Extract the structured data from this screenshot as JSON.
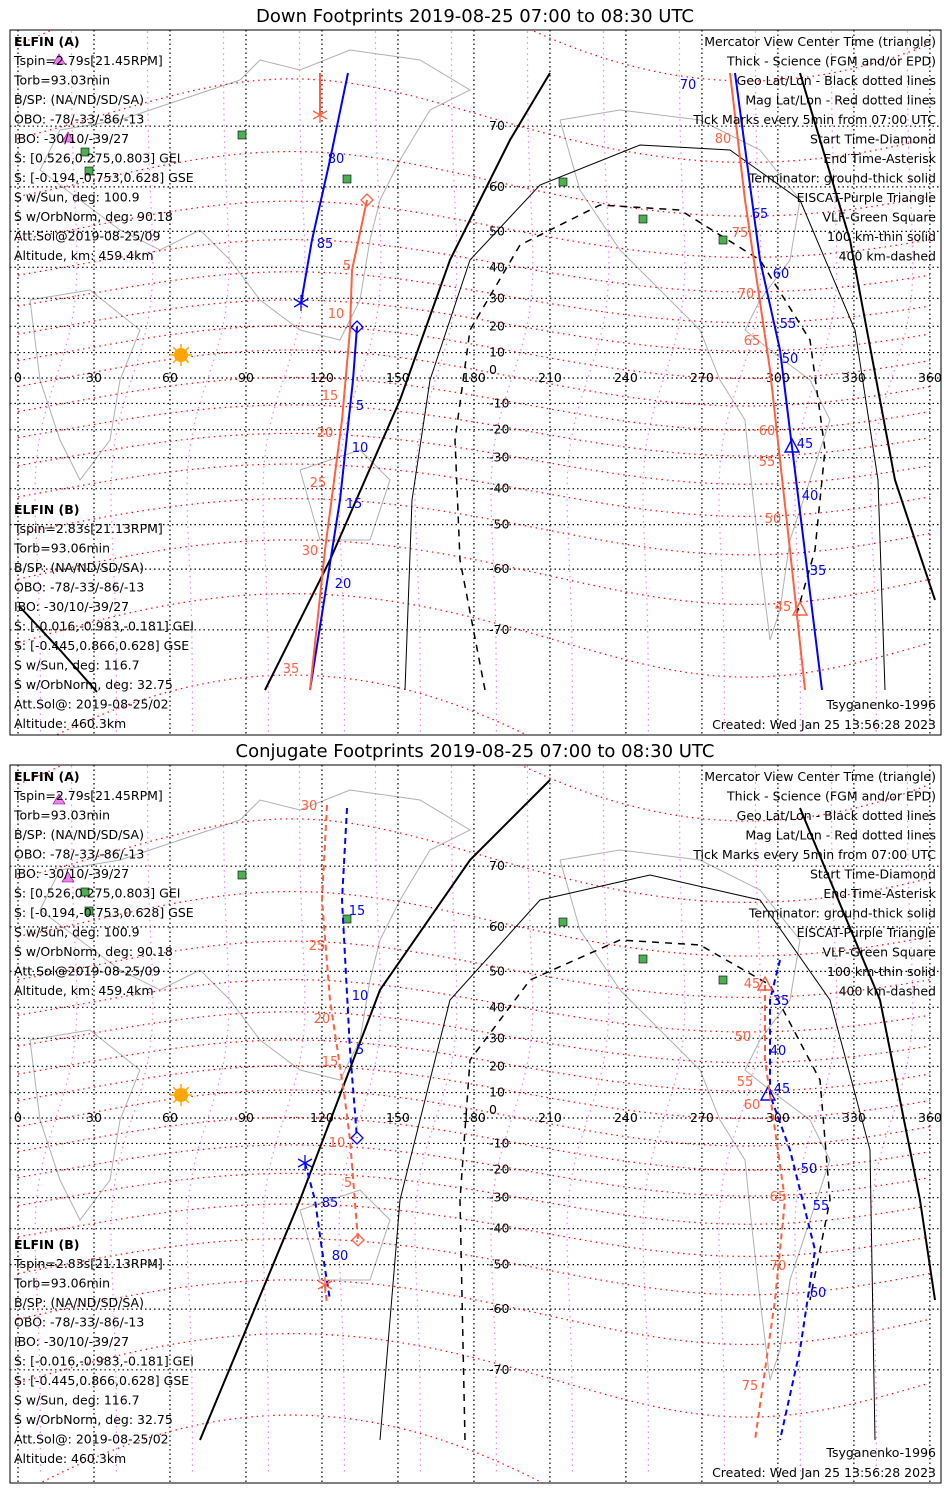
{
  "panels": [
    {
      "title": "Down Footprints 2019-08-25 07:00 to 08:30 UTC",
      "elfin_a": {
        "label": "ELFIN (A)",
        "lines": [
          "Tspin=2.79s[21.45RPM]",
          "Torb=93.03min",
          "B/SP: (NA/ND/SD/SA)",
          "OBO: -78/-33/-86/-13",
          "IBO: -30/10/-39/27",
          "S: [0.526,0.275,0.803] GEI",
          "S: [-0.194,-0.753,0.628] GSE",
          "S w/Sun, deg: 100.9",
          "S w/OrbNorm, deg: 90.18",
          "Att.Sol@2019-08-25/09",
          "Altitude, km: 459.4km"
        ]
      },
      "elfin_b": {
        "label": "ELFIN (B)",
        "lines": [
          "Tspin=2.83s[21.13RPM]",
          "Torb=93.06min",
          "B/SP: (NA/ND/SD/SA)",
          "OBO: -78/-33/-86/-13",
          "IBO: -30/10/-39/27",
          "S: [-0.016,-0.983,-0.181] GEI",
          "S: [-0.445,0.866,0.628] GSE",
          "S w/Sun, deg: 116.7",
          "S w/OrbNorm, deg: 32.75",
          "Att.Sol@: 2019-08-25/02",
          "Altitude: 460.3km"
        ]
      },
      "legend": [
        {
          "text": "Mercator View Center Time (triangle)",
          "color": "#000000"
        },
        {
          "text": "Thick - Science (FGM and/or EPD)",
          "color": "#000000"
        },
        {
          "text": "Geo Lat/Lon - Black dotted lines",
          "color": "#000000"
        },
        {
          "text": "Mag Lat/Lon - Red dotted lines",
          "color": "#ff0000"
        },
        {
          "text": "Tick Marks every 5min from 07:00 UTC",
          "color": "#000000"
        },
        {
          "text": "Start Time-Diamond",
          "color": "#000000"
        },
        {
          "text": "End Time-Asterisk",
          "color": "#000000"
        },
        {
          "text": "Terminator: ground-thick solid",
          "color": "#000000"
        },
        {
          "text": "EISCAT-Purple Triangle",
          "color": "#ee82ee"
        },
        {
          "text": "VLF-Green Square",
          "color": "#4caf50"
        },
        {
          "text": "100 km-thin solid",
          "color": "#000000"
        },
        {
          "text": "400 km-dashed",
          "color": "#000000"
        }
      ],
      "model": "Tsyganenko-1996",
      "created": "Created: Wed Jan 25 13:56:28 2023",
      "a_ticks": [
        "80",
        "85",
        "5",
        "10",
        "15",
        "20",
        "70",
        "65",
        "60",
        "55",
        "50",
        "45",
        "40",
        "35"
      ],
      "b_ticks": [
        "5",
        "10",
        "15",
        "20",
        "25",
        "30",
        "35",
        "80",
        "75",
        "70",
        "65",
        "60",
        "55",
        "50",
        "45"
      ]
    },
    {
      "title": "Conjugate Footprints 2019-08-25 07:00 to 08:30 UTC",
      "elfin_a": {
        "label": "ELFIN (A)",
        "lines": [
          "Tspin=2.79s[21.45RPM]",
          "Torb=93.03min",
          "B/SP: (NA/ND/SD/SA)",
          "OBO: -78/-33/-86/-13",
          "IBO: -30/10/-39/27",
          "S: [0.526,0.275,0.803] GEI",
          "S: [-0.194,-0.753,0.628] GSE",
          "S w/Sun, deg: 100.9",
          "S w/OrbNorm, deg: 90.18",
          "Att.Sol@2019-08-25/09",
          "Altitude, km: 459.4km"
        ]
      },
      "elfin_b": {
        "label": "ELFIN (B)",
        "lines": [
          "Tspin=2.83s[21.13RPM]",
          "Torb=93.06min",
          "B/SP: (NA/ND/SD/SA)",
          "OBO: -78/-33/-86/-13",
          "IBO: -30/10/-39/27",
          "S: [-0.016,-0.983,-0.181] GEI",
          "S: [-0.445,0.866,0.628] GSE",
          "S w/Sun, deg: 116.7",
          "S w/OrbNorm, deg: 32.75",
          "Att.Sol@: 2019-08-25/02",
          "Altitude: 460.3km"
        ]
      },
      "legend": [
        {
          "text": "Mercator View Center Time (triangle)",
          "color": "#000000"
        },
        {
          "text": "Thick - Science (FGM and/or EPD)",
          "color": "#000000"
        },
        {
          "text": "Geo Lat/Lon - Black dotted lines",
          "color": "#000000"
        },
        {
          "text": "Mag Lat/Lon - Red dotted lines",
          "color": "#ff0000"
        },
        {
          "text": "Tick Marks every 5min from 07:00 UTC",
          "color": "#000000"
        },
        {
          "text": "Start Time-Diamond",
          "color": "#000000"
        },
        {
          "text": "End Time-Asterisk",
          "color": "#000000"
        },
        {
          "text": "Terminator: ground-thick solid",
          "color": "#000000"
        },
        {
          "text": "EISCAT-Purple Triangle",
          "color": "#ee82ee"
        },
        {
          "text": "VLF-Green Square",
          "color": "#4caf50"
        },
        {
          "text": "100 km-thin solid",
          "color": "#000000"
        },
        {
          "text": "400 km-dashed",
          "color": "#000000"
        }
      ],
      "model": "Tsyganenko-1996",
      "created": "Created: Wed Jan 25 13:56:28 2023",
      "a_ticks": [
        "15",
        "10",
        "5",
        "85",
        "80",
        "35",
        "40",
        "45",
        "50",
        "55",
        "60"
      ],
      "b_ticks": [
        "30",
        "25",
        "20",
        "15",
        "10",
        "5",
        "45",
        "50",
        "55",
        "60",
        "65",
        "70",
        "75"
      ]
    }
  ],
  "lon_ticks": [
    "0",
    "30",
    "60",
    "90",
    "120",
    "150",
    "180",
    "210",
    "240",
    "270",
    "300",
    "330",
    "360"
  ],
  "lat_ticks": [
    "70",
    "60",
    "50",
    "40",
    "30",
    "20",
    "10",
    "0",
    "-10",
    "-20",
    "-30",
    "-40",
    "-50",
    "-60",
    "-70"
  ],
  "colors": {
    "elfin_a": "#0000ff",
    "elfin_b": "#ff6040",
    "mag_grid": "#ff0000",
    "eiscat": "#ee82ee",
    "vlf": "#4caf50",
    "terminator": "#000000"
  }
}
